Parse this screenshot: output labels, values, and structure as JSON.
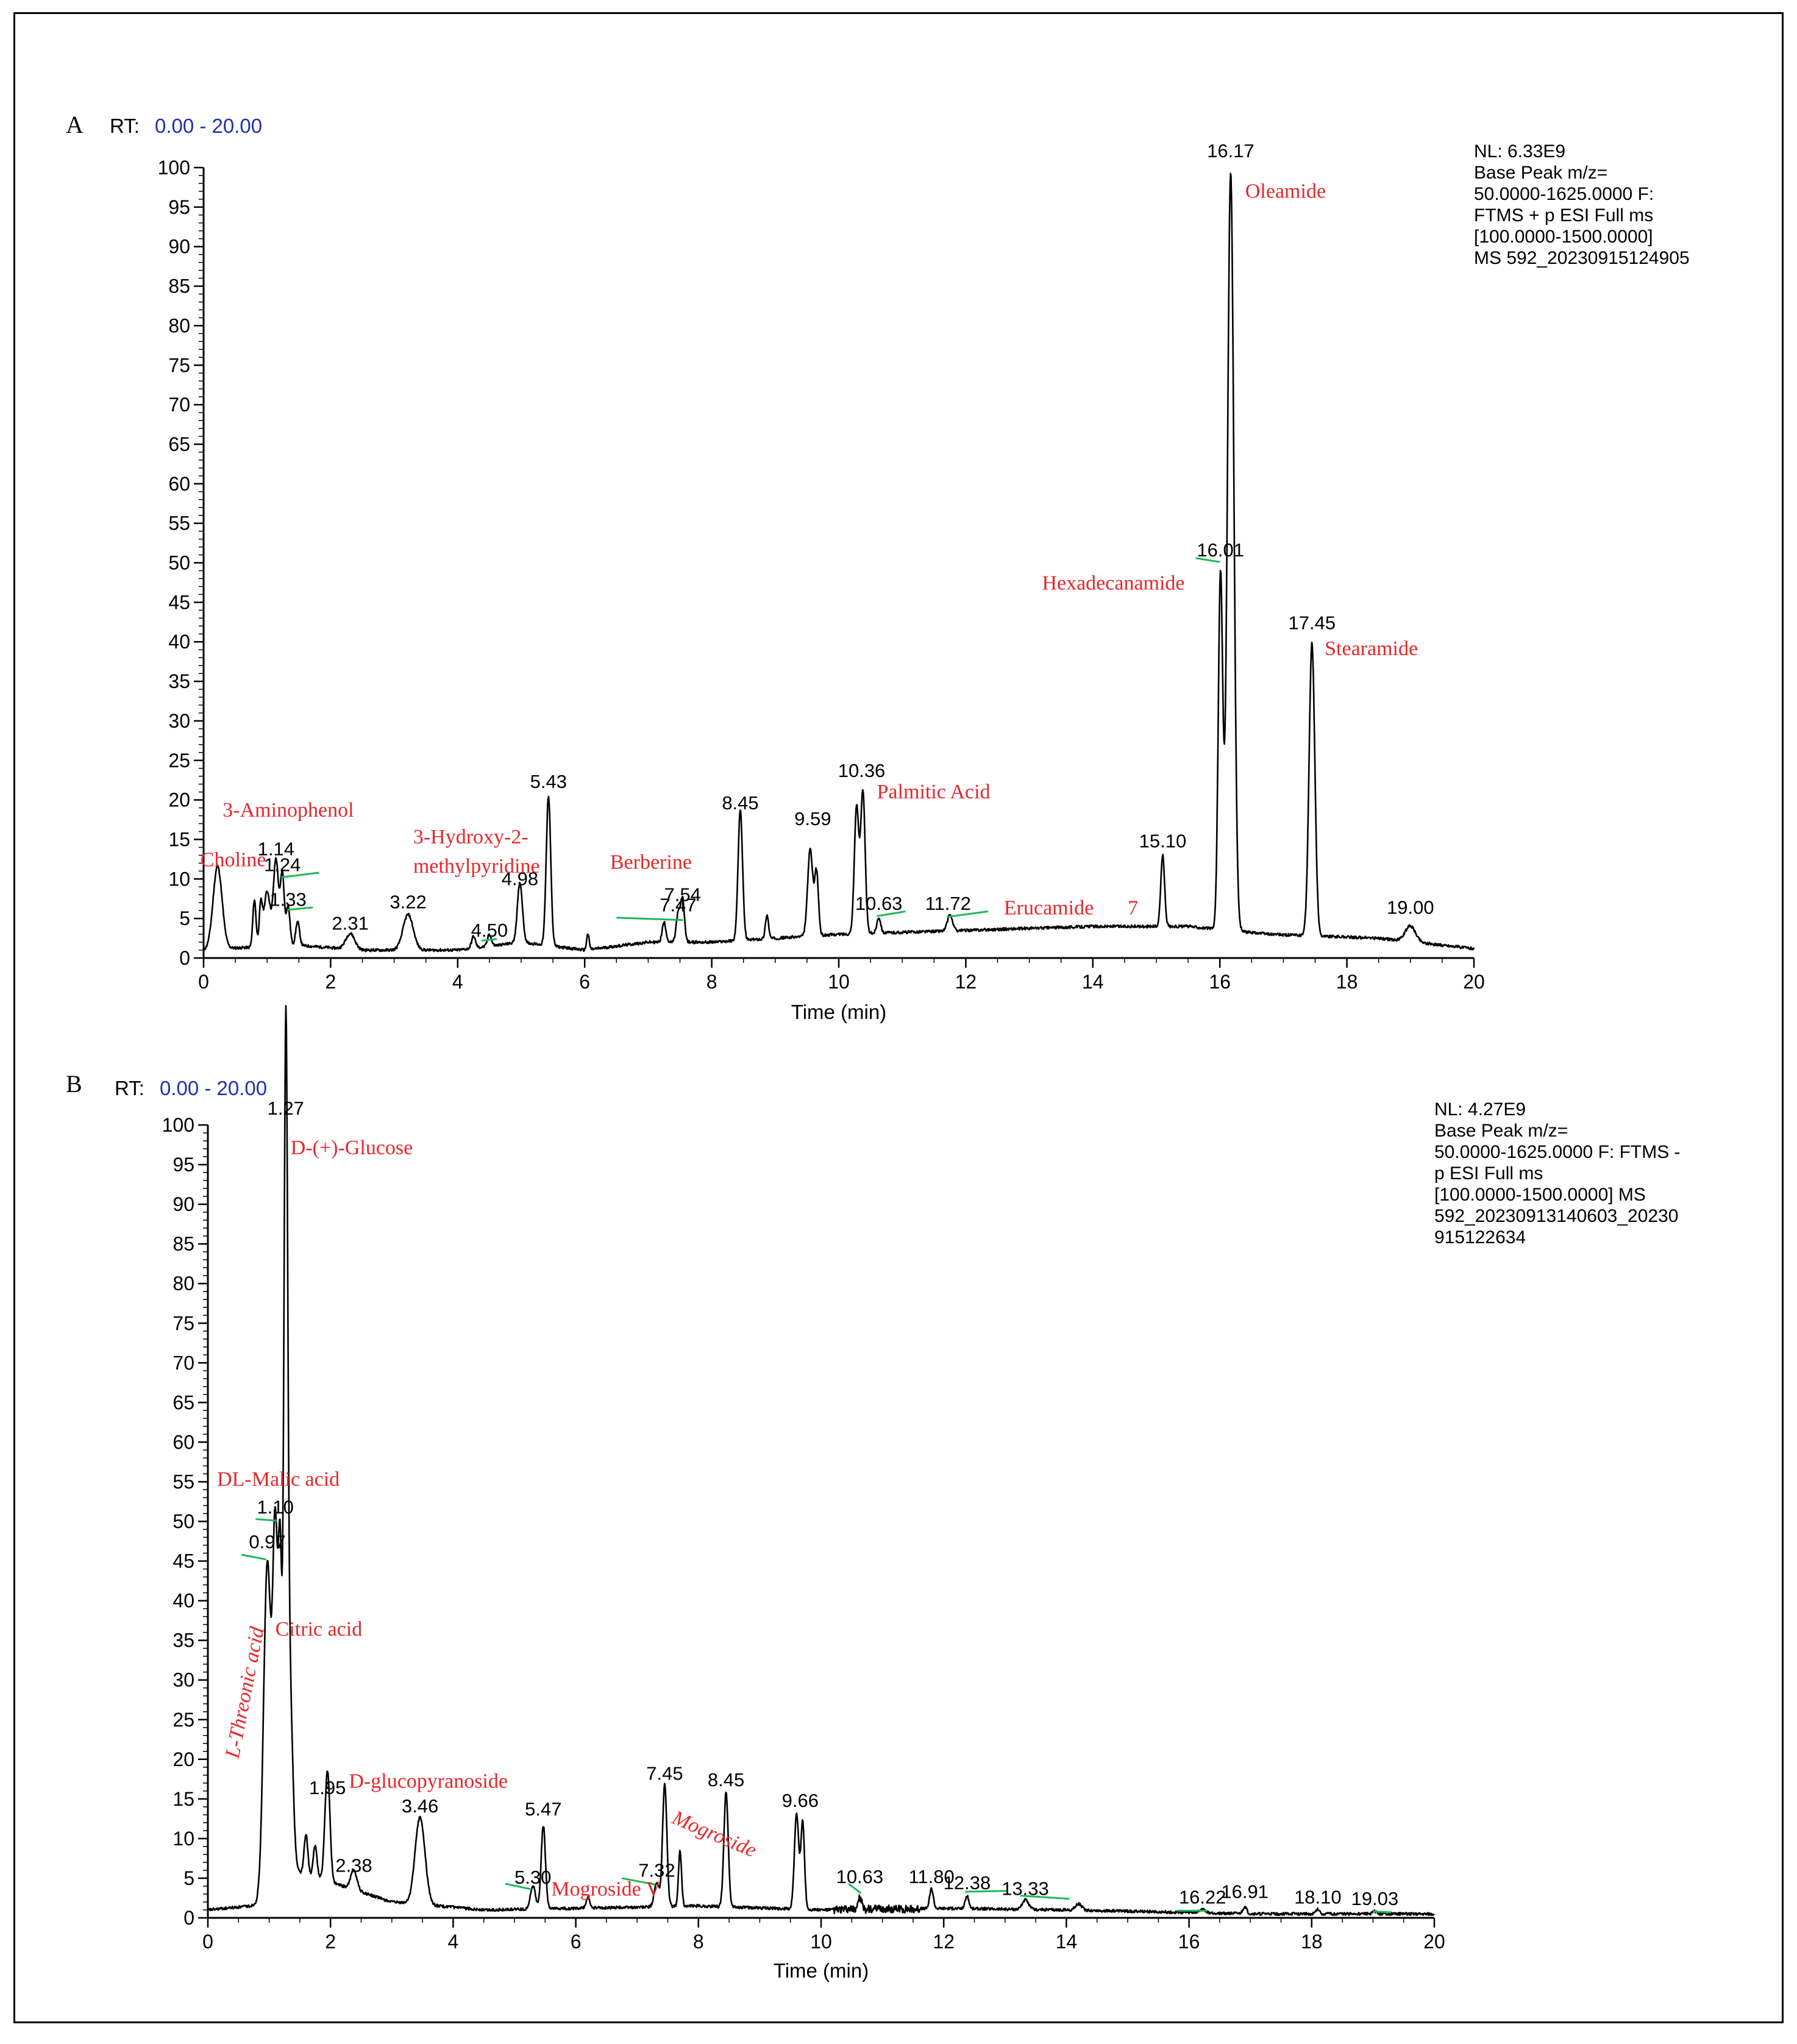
{
  "colors": {
    "compound": "#e8262a",
    "rt_prefix": "#000000",
    "rt_value": "#1f2fae",
    "trace": "#000000",
    "marker": "#1db954"
  },
  "chart_data": [
    {
      "panel": "A",
      "type": "line",
      "rt_label": "RT:",
      "rt_range": "0.00 - 20.00",
      "xlabel": "Time (min)",
      "ylabel": "",
      "xlim": [
        0,
        20
      ],
      "ylim": [
        0,
        100
      ],
      "xticks": [
        0,
        2,
        4,
        6,
        8,
        10,
        12,
        14,
        16,
        18,
        20
      ],
      "yticks": [
        0,
        5,
        10,
        15,
        20,
        25,
        30,
        35,
        40,
        45,
        50,
        55,
        60,
        65,
        70,
        75,
        80,
        85,
        90,
        95,
        100
      ],
      "info": [
        "NL: 6.33E9",
        "Base Peak m/z=",
        "50.0000-1625.0000 F:",
        "FTMS + p ESI Full ms",
        "[100.0000-1500.0000]",
        "MS 592_20230915124905"
      ],
      "peaks": [
        {
          "rt": 0.22,
          "h": 10.5,
          "w": 0.07
        },
        {
          "rt": 0.8,
          "h": 6,
          "w": 0.025
        },
        {
          "rt": 0.9,
          "h": 5,
          "w": 0.025
        },
        {
          "rt": 1.0,
          "h": 7,
          "w": 0.05
        },
        {
          "rt": 1.14,
          "h": 11,
          "w": 0.04
        },
        {
          "rt": 1.24,
          "h": 9,
          "w": 0.03
        },
        {
          "rt": 1.33,
          "h": 5,
          "w": 0.03
        },
        {
          "rt": 1.48,
          "h": 3,
          "w": 0.03
        },
        {
          "rt": 2.31,
          "h": 2,
          "w": 0.07
        },
        {
          "rt": 3.22,
          "h": 4.5,
          "w": 0.08
        },
        {
          "rt": 4.25,
          "h": 1.5,
          "w": 0.03
        },
        {
          "rt": 4.5,
          "h": 1.5,
          "w": 0.03
        },
        {
          "rt": 4.98,
          "h": 7.5,
          "w": 0.04
        },
        {
          "rt": 5.43,
          "h": 19,
          "w": 0.035
        },
        {
          "rt": 6.05,
          "h": 2,
          "w": 0.02
        },
        {
          "rt": 7.25,
          "h": 2.5,
          "w": 0.03
        },
        {
          "rt": 7.47,
          "h": 3.5,
          "w": 0.03
        },
        {
          "rt": 7.54,
          "h": 5.5,
          "w": 0.03
        },
        {
          "rt": 8.45,
          "h": 16.5,
          "w": 0.035
        },
        {
          "rt": 8.87,
          "h": 3,
          "w": 0.025
        },
        {
          "rt": 9.55,
          "h": 11,
          "w": 0.04
        },
        {
          "rt": 9.65,
          "h": 8,
          "w": 0.03
        },
        {
          "rt": 10.28,
          "h": 16,
          "w": 0.035
        },
        {
          "rt": 10.38,
          "h": 18,
          "w": 0.035
        },
        {
          "rt": 10.63,
          "h": 2,
          "w": 0.03
        },
        {
          "rt": 11.75,
          "h": 2,
          "w": 0.04
        },
        {
          "rt": 15.1,
          "h": 9,
          "w": 0.03
        },
        {
          "rt": 16.01,
          "h": 45,
          "w": 0.035
        },
        {
          "rt": 16.17,
          "h": 96,
          "w": 0.05
        },
        {
          "rt": 17.45,
          "h": 37,
          "w": 0.045
        },
        {
          "rt": 19.0,
          "h": 2,
          "w": 0.08
        }
      ],
      "baseline": [
        [
          0,
          1
        ],
        [
          0.3,
          1.2
        ],
        [
          1.5,
          1.6
        ],
        [
          2.5,
          1.0
        ],
        [
          4,
          1.0
        ],
        [
          5,
          2.0
        ],
        [
          6,
          1.0
        ],
        [
          7,
          2.0
        ],
        [
          8,
          2.0
        ],
        [
          10,
          3.0
        ],
        [
          12,
          3.5
        ],
        [
          14,
          4.0
        ],
        [
          15.5,
          4.0
        ],
        [
          16.8,
          3.0
        ],
        [
          18.5,
          2.5
        ],
        [
          20,
          1.2
        ]
      ],
      "rt_labels": [
        {
          "rt": 1.14,
          "y": 13,
          "text": "1.14"
        },
        {
          "rt": 1.24,
          "y": 11,
          "text": "1.24"
        },
        {
          "rt": 1.33,
          "y": 6.6,
          "text": "1.33"
        },
        {
          "rt": 2.31,
          "y": 3.6,
          "text": "2.31"
        },
        {
          "rt": 3.22,
          "y": 6.3,
          "text": "3.22"
        },
        {
          "rt": 4.5,
          "y": 2.7,
          "text": "4.50"
        },
        {
          "rt": 4.98,
          "y": 9.2,
          "text": "4.98"
        },
        {
          "rt": 5.43,
          "y": 21.5,
          "text": "5.43"
        },
        {
          "rt": 7.47,
          "y": 5.9,
          "text": "7.47"
        },
        {
          "rt": 7.54,
          "y": 7.2,
          "text": "7.54"
        },
        {
          "rt": 8.45,
          "y": 18.8,
          "text": "8.45"
        },
        {
          "rt": 9.59,
          "y": 16.8,
          "text": "9.59"
        },
        {
          "rt": 10.36,
          "y": 22.9,
          "text": "10.36"
        },
        {
          "rt": 10.63,
          "y": 6.1,
          "text": "10.63"
        },
        {
          "rt": 11.72,
          "y": 6.1,
          "text": "11.72"
        },
        {
          "rt": 15.1,
          "y": 14.0,
          "text": "15.10"
        },
        {
          "rt": 16.01,
          "y": 50.8,
          "text": "16.01"
        },
        {
          "rt": 16.17,
          "y": 101.3,
          "text": "16.17"
        },
        {
          "rt": 17.45,
          "y": 41.6,
          "text": "17.45"
        },
        {
          "rt": 19.0,
          "y": 5.6,
          "text": "19.00"
        }
      ],
      "annotations": [
        {
          "text": "Choline",
          "x": -0.05,
          "y": 11.6,
          "rot": 0
        },
        {
          "text": "3-Aminophenol",
          "x": 0.3,
          "y": 17.9,
          "rot": 0
        },
        {
          "text": "3-Hydroxy-2-",
          "x": 3.3,
          "y": 14.5,
          "rot": 0
        },
        {
          "text": "methylpyridine",
          "x": 3.3,
          "y": 10.8,
          "rot": 0
        },
        {
          "text": "Berberine",
          "x": 6.4,
          "y": 11.3,
          "rot": 0
        },
        {
          "text": "Palmitic Acid",
          "x": 10.6,
          "y": 20.2,
          "rot": 0
        },
        {
          "text": "Erucamide",
          "x": 12.6,
          "y": 5.5,
          "rot": 0
        },
        {
          "text": "7",
          "x": 14.55,
          "y": 5.5,
          "rot": 0
        },
        {
          "text": "Oleamide",
          "x": 16.4,
          "y": 96.2,
          "rot": 0
        },
        {
          "text": "Hexadecanamide",
          "x": 13.2,
          "y": 46.6,
          "rot": 0
        },
        {
          "text": "Stearamide",
          "x": 17.65,
          "y": 38.3,
          "rot": 0
        }
      ],
      "markers": [
        {
          "x1": 1.22,
          "y1": 10.2,
          "x2": 1.82,
          "y2": 10.8
        },
        {
          "x1": 1.32,
          "y1": 6.1,
          "x2": 1.72,
          "y2": 6.4
        },
        {
          "x1": 4.38,
          "y1": 2.2,
          "x2": 4.62,
          "y2": 2.4
        },
        {
          "x1": 6.5,
          "y1": 5.1,
          "x2": 7.55,
          "y2": 4.8
        },
        {
          "x1": 10.6,
          "y1": 5.3,
          "x2": 11.05,
          "y2": 5.9
        },
        {
          "x1": 11.7,
          "y1": 5.2,
          "x2": 12.35,
          "y2": 5.9
        },
        {
          "x1": 15.62,
          "y1": 50.6,
          "x2": 16.0,
          "y2": 50.1
        }
      ]
    },
    {
      "panel": "B",
      "type": "line",
      "rt_label": "RT:",
      "rt_range": "0.00 - 20.00",
      "xlabel": "Time (min)",
      "ylabel": "",
      "xlim": [
        0,
        20
      ],
      "ylim": [
        0,
        100
      ],
      "xticks": [
        0,
        2,
        4,
        6,
        8,
        10,
        12,
        14,
        16,
        18,
        20
      ],
      "yticks": [
        0,
        5,
        10,
        15,
        20,
        25,
        30,
        35,
        40,
        45,
        50,
        55,
        60,
        65,
        70,
        75,
        80,
        85,
        90,
        95,
        100
      ],
      "info": [
        "NL: 4.27E9",
        "Base Peak m/z=",
        "50.0000-1625.0000 F: FTMS -",
        "p ESI Full ms",
        "[100.0000-1500.0000]  MS",
        "592_20230913140603_20230",
        "915122634"
      ],
      "peaks": [
        {
          "rt": 0.97,
          "h": 42,
          "w": 0.06
        },
        {
          "rt": 1.1,
          "h": 43,
          "w": 0.04
        },
        {
          "rt": 1.18,
          "h": 38,
          "w": 0.03
        },
        {
          "rt": 1.27,
          "h": 97,
          "w": 0.03
        },
        {
          "rt": 1.33,
          "h": 25,
          "w": 0.05
        },
        {
          "rt": 1.6,
          "h": 5,
          "w": 0.03
        },
        {
          "rt": 1.75,
          "h": 4,
          "w": 0.03
        },
        {
          "rt": 1.95,
          "h": 14,
          "w": 0.04
        },
        {
          "rt": 2.38,
          "h": 2.5,
          "w": 0.05
        },
        {
          "rt": 3.46,
          "h": 11,
          "w": 0.08
        },
        {
          "rt": 5.3,
          "h": 3,
          "w": 0.04
        },
        {
          "rt": 5.47,
          "h": 10.5,
          "w": 0.035
        },
        {
          "rt": 6.2,
          "h": 1.3,
          "w": 0.03
        },
        {
          "rt": 7.32,
          "h": 3,
          "w": 0.04
        },
        {
          "rt": 7.45,
          "h": 15.5,
          "w": 0.035
        },
        {
          "rt": 7.7,
          "h": 7,
          "w": 0.025
        },
        {
          "rt": 8.45,
          "h": 14.5,
          "w": 0.035
        },
        {
          "rt": 9.6,
          "h": 12,
          "w": 0.035
        },
        {
          "rt": 9.7,
          "h": 11,
          "w": 0.03
        },
        {
          "rt": 10.63,
          "h": 1.5,
          "w": 0.03
        },
        {
          "rt": 11.8,
          "h": 2.5,
          "w": 0.03
        },
        {
          "rt": 12.38,
          "h": 1.6,
          "w": 0.03
        },
        {
          "rt": 13.33,
          "h": 1.2,
          "w": 0.05
        },
        {
          "rt": 14.2,
          "h": 0.8,
          "w": 0.05
        },
        {
          "rt": 16.22,
          "h": 0.4,
          "w": 0.05
        },
        {
          "rt": 16.91,
          "h": 0.9,
          "w": 0.03
        },
        {
          "rt": 18.1,
          "h": 0.6,
          "w": 0.03
        },
        {
          "rt": 19.03,
          "h": 0.3,
          "w": 0.03
        }
      ],
      "baseline": [
        [
          0,
          1.0
        ],
        [
          0.7,
          1.5
        ],
        [
          0.85,
          2.0
        ],
        [
          1.4,
          6.0
        ],
        [
          2.2,
          4.0
        ],
        [
          3.0,
          2.0
        ],
        [
          4.5,
          1.0
        ],
        [
          6.0,
          1.2
        ],
        [
          8.0,
          1.5
        ],
        [
          10.0,
          1.0
        ],
        [
          12.0,
          1.2
        ],
        [
          14.0,
          1.0
        ],
        [
          17.0,
          0.5
        ],
        [
          20.0,
          0.5
        ]
      ],
      "rt_labels": [
        {
          "rt": 0.97,
          "y": 46.6,
          "text": "0.97"
        },
        {
          "rt": 1.1,
          "y": 51.0,
          "text": "1.10"
        },
        {
          "rt": 1.27,
          "y": 101.3,
          "text": "1.27"
        },
        {
          "rt": 1.95,
          "y": 15.6,
          "text": "1.95"
        },
        {
          "rt": 2.38,
          "y": 5.8,
          "text": "2.38"
        },
        {
          "rt": 3.46,
          "y": 13.3,
          "text": "3.46"
        },
        {
          "rt": 5.3,
          "y": 4.3,
          "text": "5.30"
        },
        {
          "rt": 5.47,
          "y": 12.9,
          "text": "5.47"
        },
        {
          "rt": 7.32,
          "y": 5.2,
          "text": "7.32"
        },
        {
          "rt": 7.45,
          "y": 17.4,
          "text": "7.45"
        },
        {
          "rt": 8.45,
          "y": 16.6,
          "text": "8.45"
        },
        {
          "rt": 9.66,
          "y": 14.0,
          "text": "9.66"
        },
        {
          "rt": 10.63,
          "y": 4.4,
          "text": "10.63"
        },
        {
          "rt": 11.8,
          "y": 4.4,
          "text": "11.80"
        },
        {
          "rt": 12.38,
          "y": 3.6,
          "text": "12.38"
        },
        {
          "rt": 13.33,
          "y": 2.9,
          "text": "13.33"
        },
        {
          "rt": 16.22,
          "y": 1.8,
          "text": "16.22"
        },
        {
          "rt": 16.91,
          "y": 2.5,
          "text": "16.91"
        },
        {
          "rt": 18.1,
          "y": 1.8,
          "text": "18.10"
        },
        {
          "rt": 19.03,
          "y": 1.6,
          "text": "19.03"
        }
      ],
      "annotations": [
        {
          "text": "D-(+)-Glucose",
          "x": 1.35,
          "y": 96.3,
          "rot": 0
        },
        {
          "text": "DL-Malic acid",
          "x": 0.15,
          "y": 54.5,
          "rot": 0
        },
        {
          "text": "Citric acid",
          "x": 1.1,
          "y": 35.6,
          "rot": 0
        },
        {
          "text": "L-Threonic acid",
          "x": 0.5,
          "y": 20.0,
          "rot": -79,
          "italic": true
        },
        {
          "text": "D-glucopyranoside",
          "x": 2.3,
          "y": 16.4,
          "rot": 0
        },
        {
          "text": "Mogroside V",
          "x": 5.6,
          "y": 2.8,
          "rot": 0
        },
        {
          "text": "Mogroside",
          "x": 7.55,
          "y": 12.0,
          "rot": 23,
          "italic": true
        }
      ],
      "markers": [
        {
          "x1": 0.55,
          "y1": 45.8,
          "x2": 0.95,
          "y2": 45.2
        },
        {
          "x1": 0.78,
          "y1": 50.3,
          "x2": 1.12,
          "y2": 50.1
        },
        {
          "x1": 4.85,
          "y1": 4.3,
          "x2": 5.28,
          "y2": 3.6
        },
        {
          "x1": 6.75,
          "y1": 5.0,
          "x2": 7.3,
          "y2": 4.2
        },
        {
          "x1": 10.45,
          "y1": 4.3,
          "x2": 10.65,
          "y2": 3.1
        },
        {
          "x1": 12.35,
          "y1": 3.3,
          "x2": 13.05,
          "y2": 3.4
        },
        {
          "x1": 13.25,
          "y1": 2.8,
          "x2": 14.05,
          "y2": 2.4
        },
        {
          "x1": 15.8,
          "y1": 0.9,
          "x2": 16.3,
          "y2": 0.9
        },
        {
          "x1": 19.0,
          "y1": 0.8,
          "x2": 19.3,
          "y2": 0.7
        }
      ]
    }
  ]
}
